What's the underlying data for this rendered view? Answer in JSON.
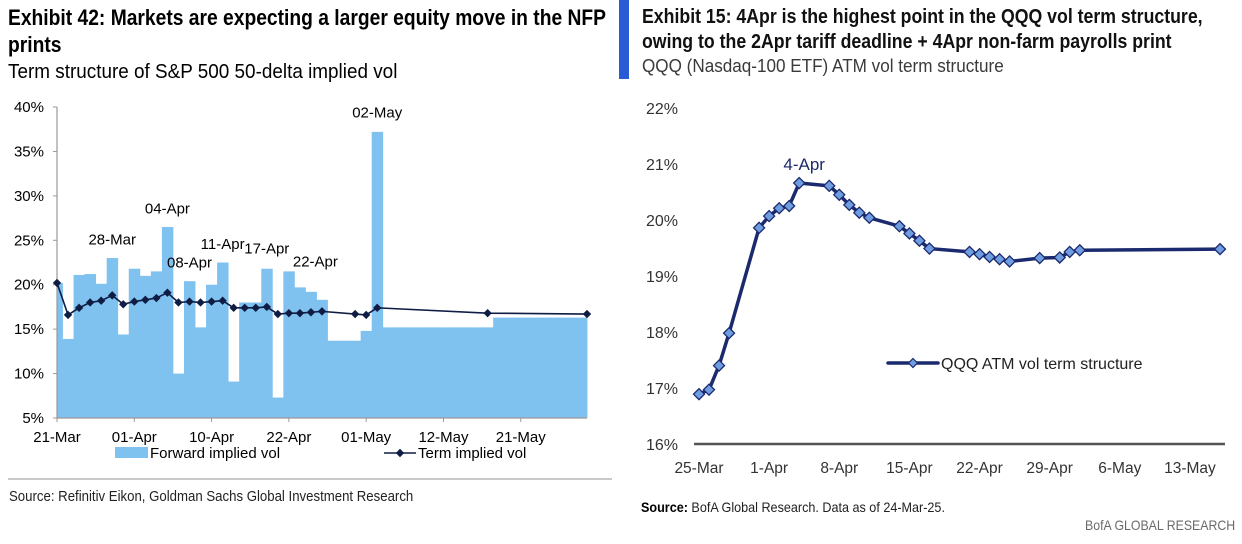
{
  "left_exhibit": {
    "title_lines": [
      "Exhibit 42: Markets are expecting a larger equity move in the NFP",
      "prints"
    ],
    "subtitle": "Term structure of S&P 500 50-delta implied vol",
    "source": "Source: Refinitiv Eikon, Goldman Sachs Global Investment Research"
  },
  "right_exhibit": {
    "title_lines": [
      "Exhibit 15: 4Apr is the highest point in the QQQ vol term structure,",
      "owing to the 2Apr tariff deadline + 4Apr non-farm payrolls print"
    ],
    "subtitle": "QQQ (Nasdaq-100 ETF) ATM vol term structure",
    "source_label": "Source:",
    "source_text": " BofA Global Research. Data as of 24-Mar-25.",
    "brand": "BofA GLOBAL RESEARCH"
  },
  "colors": {
    "forward_bar": "#7fc1ef",
    "term_line": "#0f1d45",
    "qqq_line": "#1b2a6e",
    "qqq_marker": "#6f9de0",
    "accent_bar": "#2a5bd7",
    "axis_gray": "#9a9a9a",
    "axis_dark": "#555555"
  },
  "chart_data": [
    {
      "type": "bar",
      "title": "Term structure of S&P 500 50-delta implied vol",
      "xlabel": "",
      "ylabel": "",
      "x_axis": "business days",
      "x_dates": [
        "21-Mar",
        "24-Mar",
        "25-Mar",
        "26-Mar",
        "27-Mar",
        "28-Mar",
        "31-Mar",
        "01-Apr",
        "02-Apr",
        "03-Apr",
        "04-Apr",
        "07-Apr",
        "08-Apr",
        "09-Apr",
        "10-Apr",
        "11-Apr",
        "14-Apr",
        "15-Apr",
        "16-Apr",
        "17-Apr",
        "21-Apr",
        "22-Apr",
        "23-Apr",
        "24-Apr",
        "25-Apr",
        "28-Apr",
        "29-Apr",
        "30-Apr",
        "01-May",
        "02-May",
        "05-May",
        "06-May",
        "07-May",
        "08-May",
        "09-May",
        "12-May",
        "13-May",
        "14-May",
        "15-May",
        "16-May",
        "19-May",
        "20-May",
        "21-May",
        "22-May",
        "23-May",
        "27-May",
        "28-May",
        "29-May",
        "30-May"
      ],
      "x_tick_labels": [
        "21-Mar",
        "01-Apr",
        "10-Apr",
        "22-Apr",
        "01-May",
        "12-May",
        "21-May"
      ],
      "ylim": [
        5,
        40
      ],
      "y_ticks": [
        5,
        10,
        15,
        20,
        25,
        30,
        35,
        40
      ],
      "y_tick_labels": [
        "5%",
        "10%",
        "15%",
        "20%",
        "25%",
        "30%",
        "35%",
        "40%"
      ],
      "grid": false,
      "legend_position": "bottom",
      "series": [
        {
          "name": "Forward implied vol",
          "type": "bar",
          "unit": "%",
          "values": [
            20.2,
            13.9,
            21.1,
            21.2,
            20.1,
            23.0,
            14.4,
            21.8,
            21.0,
            21.5,
            26.5,
            10.0,
            20.4,
            15.2,
            20.0,
            22.5,
            9.1,
            18.0,
            18.0,
            21.8,
            7.3,
            21.5,
            19.7,
            19.2,
            18.3,
            13.7,
            13.7,
            13.7,
            14.8,
            37.2,
            15.2,
            15.2,
            15.2,
            15.2,
            15.2,
            15.2,
            15.2,
            15.2,
            15.2,
            15.2,
            16.3,
            16.3,
            16.3,
            16.3,
            16.3,
            16.3,
            16.3,
            16.3,
            16.3
          ]
        },
        {
          "name": "Term implied vol",
          "type": "line",
          "unit": "%",
          "marker": "diamond",
          "points": [
            {
              "x": "21-Mar",
              "y": 20.2
            },
            {
              "x": "24-Mar",
              "y": 16.6
            },
            {
              "x": "25-Mar",
              "y": 17.4
            },
            {
              "x": "26-Mar",
              "y": 18.0
            },
            {
              "x": "27-Mar",
              "y": 18.2
            },
            {
              "x": "28-Mar",
              "y": 18.8
            },
            {
              "x": "31-Mar",
              "y": 17.8
            },
            {
              "x": "01-Apr",
              "y": 18.1
            },
            {
              "x": "02-Apr",
              "y": 18.3
            },
            {
              "x": "03-Apr",
              "y": 18.5
            },
            {
              "x": "04-Apr",
              "y": 19.1
            },
            {
              "x": "07-Apr",
              "y": 18.0
            },
            {
              "x": "08-Apr",
              "y": 18.1
            },
            {
              "x": "09-Apr",
              "y": 18.0
            },
            {
              "x": "10-Apr",
              "y": 18.1
            },
            {
              "x": "11-Apr",
              "y": 18.2
            },
            {
              "x": "14-Apr",
              "y": 17.4
            },
            {
              "x": "15-Apr",
              "y": 17.4
            },
            {
              "x": "16-Apr",
              "y": 17.4
            },
            {
              "x": "17-Apr",
              "y": 17.5
            },
            {
              "x": "21-Apr",
              "y": 16.7
            },
            {
              "x": "22-Apr",
              "y": 16.8
            },
            {
              "x": "23-Apr",
              "y": 16.8
            },
            {
              "x": "24-Apr",
              "y": 16.9
            },
            {
              "x": "25-Apr",
              "y": 17.0
            },
            {
              "x": "30-Apr",
              "y": 16.7
            },
            {
              "x": "01-May",
              "y": 16.6
            },
            {
              "x": "02-May",
              "y": 17.4
            },
            {
              "x": "16-May",
              "y": 16.8
            },
            {
              "x": "30-May",
              "y": 16.7
            }
          ]
        }
      ],
      "annotations": [
        {
          "text": "28-Mar",
          "date": "28-Mar",
          "y": 25.1
        },
        {
          "text": "04-Apr",
          "date": "04-Apr",
          "y": 28.6
        },
        {
          "text": "08-Apr",
          "date": "08-Apr",
          "y": 22.5
        },
        {
          "text": "11-Apr",
          "date": "11-Apr",
          "y": 24.6
        },
        {
          "text": "17-Apr",
          "date": "17-Apr",
          "y": 24.1
        },
        {
          "text": "22-Apr",
          "date": "22-Apr",
          "y": 22.6,
          "shift_days": 2.4
        },
        {
          "text": "02-May",
          "date": "02-May",
          "y": 39.4
        }
      ]
    },
    {
      "type": "line",
      "title": "QQQ (Nasdaq-100 ETF) ATM vol term structure",
      "xlabel": "",
      "ylabel": "",
      "x_axis": "calendar days",
      "xlim": [
        "25-Mar",
        "16-May"
      ],
      "x_tick_labels": [
        "25-Mar",
        "1-Apr",
        "8-Apr",
        "15-Apr",
        "22-Apr",
        "29-Apr",
        "6-May",
        "13-May"
      ],
      "ylim": [
        16,
        22
      ],
      "y_ticks": [
        16,
        17,
        18,
        19,
        20,
        21,
        22
      ],
      "y_tick_labels": [
        "16%",
        "17%",
        "18%",
        "19%",
        "20%",
        "21%",
        "22%"
      ],
      "grid": false,
      "legend_position": "center-right",
      "series": [
        {
          "name": "QQQ ATM vol term structure",
          "unit": "%",
          "marker": "diamond",
          "points": [
            {
              "x": "25-Mar",
              "y": 16.89
            },
            {
              "x": "26-Mar",
              "y": 16.97
            },
            {
              "x": "27-Mar",
              "y": 17.4
            },
            {
              "x": "28-Mar",
              "y": 17.98
            },
            {
              "x": "31-Mar",
              "y": 19.86
            },
            {
              "x": "1-Apr",
              "y": 20.07
            },
            {
              "x": "2-Apr",
              "y": 20.21
            },
            {
              "x": "3-Apr",
              "y": 20.25
            },
            {
              "x": "4-Apr",
              "y": 20.66
            },
            {
              "x": "7-Apr",
              "y": 20.61
            },
            {
              "x": "8-Apr",
              "y": 20.45
            },
            {
              "x": "9-Apr",
              "y": 20.27
            },
            {
              "x": "10-Apr",
              "y": 20.13
            },
            {
              "x": "11-Apr",
              "y": 20.04
            },
            {
              "x": "14-Apr",
              "y": 19.89
            },
            {
              "x": "15-Apr",
              "y": 19.76
            },
            {
              "x": "16-Apr",
              "y": 19.63
            },
            {
              "x": "17-Apr",
              "y": 19.49
            },
            {
              "x": "21-Apr",
              "y": 19.43
            },
            {
              "x": "22-Apr",
              "y": 19.39
            },
            {
              "x": "23-Apr",
              "y": 19.34
            },
            {
              "x": "24-Apr",
              "y": 19.3
            },
            {
              "x": "25-Apr",
              "y": 19.26
            },
            {
              "x": "28-Apr",
              "y": 19.32
            },
            {
              "x": "30-Apr",
              "y": 19.33
            },
            {
              "x": "1-May",
              "y": 19.43
            },
            {
              "x": "2-May",
              "y": 19.46
            },
            {
              "x": "16-May",
              "y": 19.48
            }
          ]
        }
      ],
      "annotations": [
        {
          "text": "4-Apr",
          "date": "4-Apr",
          "y": 21.0
        }
      ]
    }
  ]
}
